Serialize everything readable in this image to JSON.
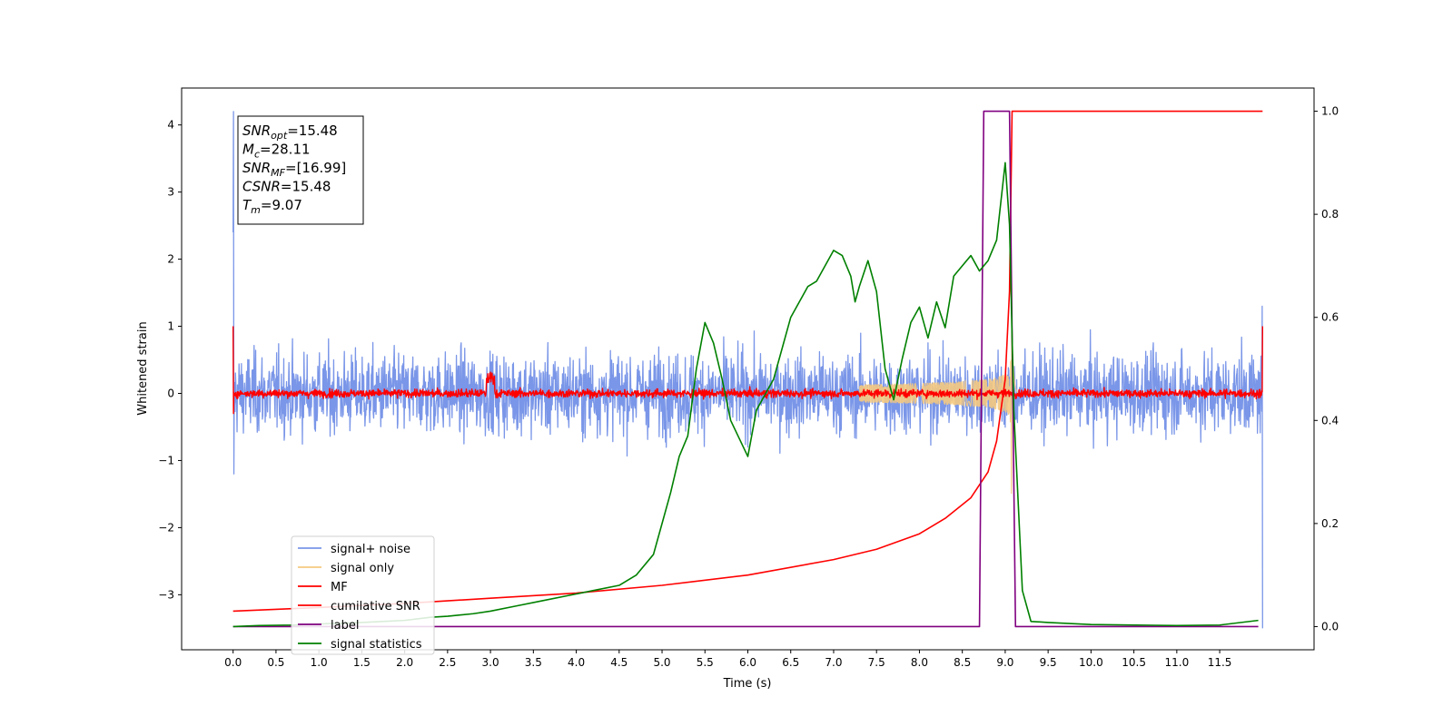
{
  "chart_data": {
    "type": "line",
    "xlabel": "Time (s)",
    "ylabel": "Whitened strain",
    "xlim": [
      -0.6,
      12.6
    ],
    "ylim": [
      -3.82,
      4.55
    ],
    "y2lim": [
      -0.045,
      1.045
    ],
    "xticks": [
      "0.0",
      "0.5",
      "1.0",
      "1.5",
      "2.0",
      "2.5",
      "3.0",
      "3.5",
      "4.0",
      "4.5",
      "5.0",
      "5.5",
      "6.0",
      "6.5",
      "7.0",
      "7.5",
      "8.0",
      "8.5",
      "9.0",
      "9.5",
      "10.0",
      "10.5",
      "11.0",
      "11.5"
    ],
    "yticks": [
      "−3",
      "−2",
      "−1",
      "0",
      "1",
      "2",
      "3",
      "4"
    ],
    "y2ticks": [
      "0.0",
      "0.2",
      "0.4",
      "0.6",
      "0.8",
      "1.0"
    ],
    "grid": false,
    "legend_placement": "lower-left",
    "annotation": [
      {
        "sym": "SNR",
        "sub": "opt",
        "value": "=15.48"
      },
      {
        "sym": "M",
        "sub": "c",
        "value": "=28.11"
      },
      {
        "sym": "SNR",
        "sub": "MF",
        "value": "=[16.99]"
      },
      {
        "sym": "CSNR",
        "sub": "",
        "value": "=15.48"
      },
      {
        "sym": "T",
        "sub": "m",
        "value": "=9.07"
      }
    ],
    "series": [
      {
        "name": "signal+ noise",
        "axis": "left",
        "color": "#7a96e8",
        "style": "noise",
        "t_range": [
          0,
          12
        ],
        "noise_std": 0.5,
        "start_spike": [
          2.4,
          4.2
        ],
        "end_spike": [
          1.3,
          -3.5
        ]
      },
      {
        "name": "signal only",
        "axis": "left",
        "color": "#f5c97f",
        "style": "chirp",
        "merger": 9.07,
        "peak_amp": 1.7
      },
      {
        "name": "MF",
        "axis": "left",
        "color": "#ff0000",
        "style": "noise",
        "t_range": [
          0,
          12
        ],
        "noise_std": 0.05,
        "start_value": 1.0,
        "end_value": 1.0,
        "bump": {
          "t": [
            2.95,
            3.05
          ],
          "amp": 0.3
        }
      },
      {
        "name": "cumilative SNR",
        "axis": "right",
        "color": "#ff0000",
        "style": "line",
        "x": [
          0.0,
          1.0,
          2.0,
          3.0,
          4.0,
          5.0,
          6.0,
          7.0,
          7.5,
          8.0,
          8.3,
          8.6,
          8.8,
          8.9,
          9.0,
          9.05,
          9.07,
          9.08,
          12.0
        ],
        "y": [
          0.03,
          0.037,
          0.045,
          0.055,
          0.065,
          0.08,
          0.1,
          0.13,
          0.15,
          0.18,
          0.21,
          0.25,
          0.3,
          0.36,
          0.48,
          0.65,
          0.88,
          1.0,
          1.0
        ]
      },
      {
        "name": "label",
        "axis": "right",
        "color": "#800080",
        "style": "line",
        "x": [
          0.0,
          8.7,
          8.75,
          9.05,
          9.12,
          11.95
        ],
        "y": [
          0.0,
          0.0,
          1.0,
          1.0,
          0.0,
          0.0
        ]
      },
      {
        "name": "signal statistics",
        "axis": "right",
        "color": "#008000",
        "style": "line",
        "x": [
          0.0,
          0.3,
          0.7,
          1.0,
          1.5,
          2.0,
          2.3,
          2.5,
          2.8,
          3.0,
          3.3,
          3.6,
          3.9,
          4.2,
          4.5,
          4.7,
          4.9,
          5.0,
          5.1,
          5.2,
          5.3,
          5.4,
          5.5,
          5.6,
          5.7,
          5.8,
          6.0,
          6.1,
          6.3,
          6.5,
          6.7,
          6.8,
          7.0,
          7.1,
          7.2,
          7.25,
          7.3,
          7.4,
          7.5,
          7.6,
          7.7,
          7.8,
          7.9,
          8.0,
          8.1,
          8.2,
          8.3,
          8.4,
          8.5,
          8.6,
          8.7,
          8.8,
          8.9,
          9.0,
          9.05,
          9.1,
          9.2,
          9.3,
          9.5,
          10.0,
          11.0,
          11.5,
          11.95
        ],
        "y": [
          0.0,
          0.002,
          0.003,
          0.005,
          0.008,
          0.012,
          0.018,
          0.02,
          0.025,
          0.03,
          0.04,
          0.05,
          0.06,
          0.07,
          0.08,
          0.1,
          0.14,
          0.2,
          0.26,
          0.33,
          0.37,
          0.5,
          0.59,
          0.55,
          0.48,
          0.4,
          0.33,
          0.42,
          0.48,
          0.6,
          0.66,
          0.67,
          0.73,
          0.72,
          0.68,
          0.63,
          0.66,
          0.71,
          0.65,
          0.5,
          0.44,
          0.52,
          0.59,
          0.62,
          0.56,
          0.63,
          0.58,
          0.68,
          0.7,
          0.72,
          0.69,
          0.71,
          0.75,
          0.9,
          0.78,
          0.42,
          0.07,
          0.01,
          0.008,
          0.004,
          0.002,
          0.003,
          0.012
        ]
      }
    ]
  }
}
